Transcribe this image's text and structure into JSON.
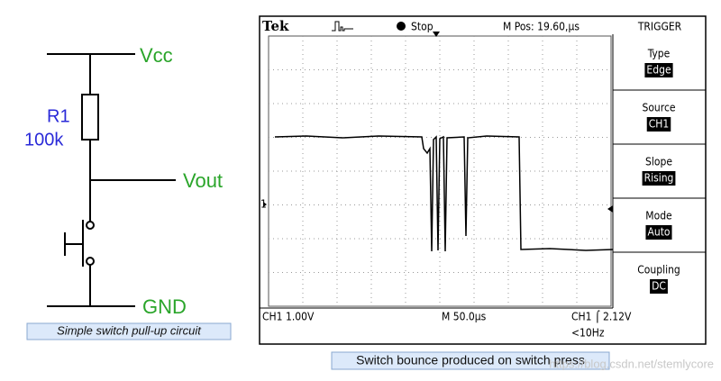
{
  "circuit": {
    "vcc": "Vcc",
    "resistor_name": "R1",
    "resistor_value": "100k",
    "vout": "Vout",
    "gnd": "GND",
    "caption": "Simple switch pull-up circuit"
  },
  "scope": {
    "brand": "Tek",
    "status": "Stop",
    "position": "M Pos: 19.60,µs",
    "menu_title": "TRIGGER",
    "menu": [
      {
        "label": "Type",
        "value": "Edge"
      },
      {
        "label": "Source",
        "value": "CH1"
      },
      {
        "label": "Slope",
        "value": "Rising"
      },
      {
        "label": "Mode",
        "value": "Auto"
      },
      {
        "label": "Coupling",
        "value": "DC"
      }
    ],
    "channel_marker": "1",
    "channel_scale": "CH1  1.00V",
    "time_scale": "M 50.0µs",
    "trigger_level": "CH1 ⌠ 2.12V",
    "frequency": "<10Hz",
    "caption": "Switch bounce produced on switch press"
  },
  "watermark": "https://blog.csdn.net/stemlycore"
}
